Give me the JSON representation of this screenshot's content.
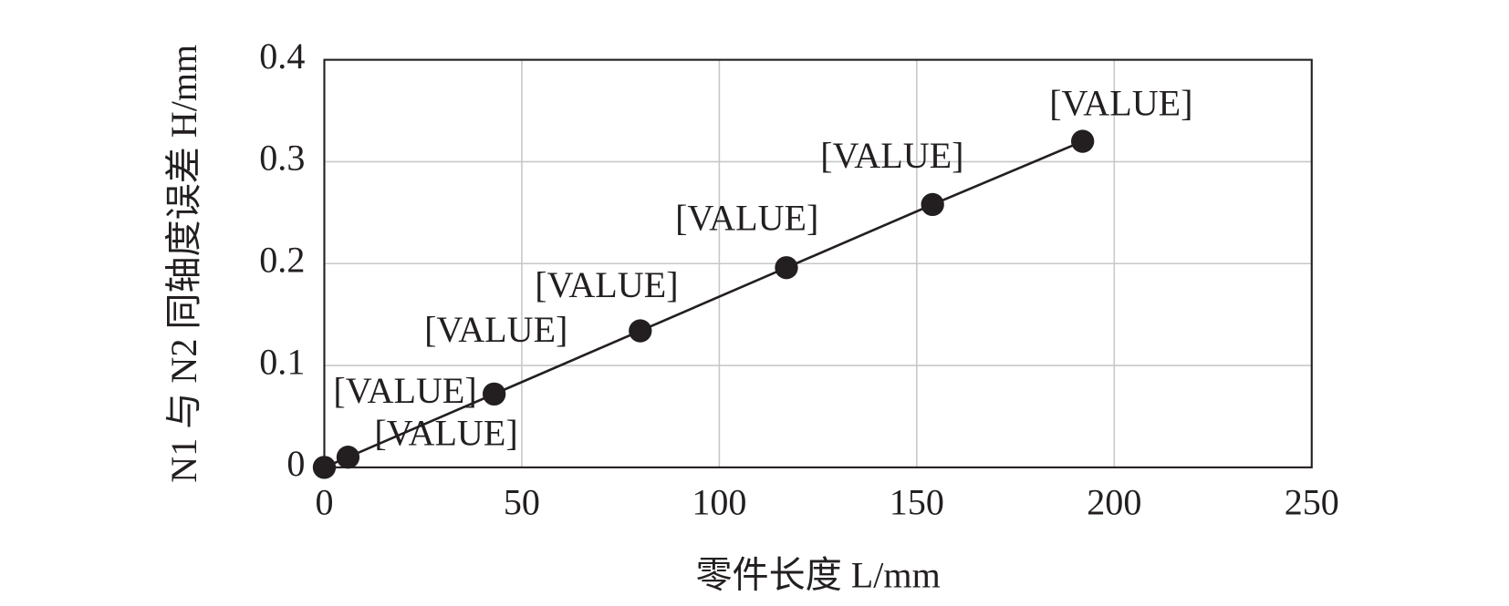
{
  "chart_data": {
    "type": "line",
    "x_label": "零件长度 L/mm",
    "y_label": "N1 与 N2 同轴度误差 H/mm",
    "x": [
      0,
      6,
      43,
      80,
      117,
      154,
      192
    ],
    "series": [
      {
        "color": "#231f20",
        "values": [
          0,
          0.01,
          0.072,
          0.134,
          0.196,
          0.258,
          0.32
        ],
        "value_labels": [
          "[VALUE]",
          "[VALUE]",
          "[VALUE]",
          "[VALUE]",
          "[VALUE]",
          "[VALUE]",
          "[VALUE]"
        ]
      }
    ],
    "xlim": [
      0,
      250
    ],
    "xticks": [
      0,
      50,
      100,
      150,
      200,
      250
    ],
    "ylim": [
      0,
      0.4
    ],
    "yticks": [
      0,
      0.1,
      0.2,
      0.3,
      0.4
    ],
    "grid": true
  }
}
